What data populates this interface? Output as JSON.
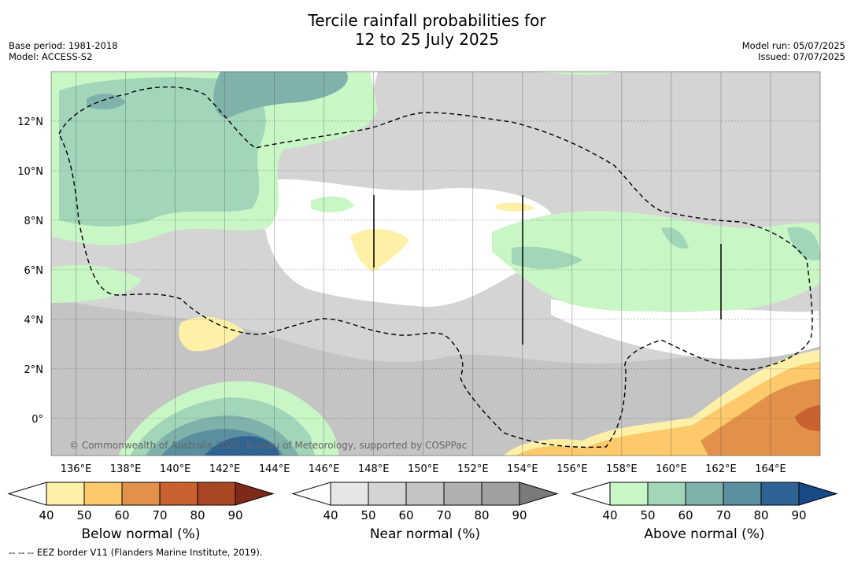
{
  "title_line1": "Tercile rainfall probabilities for",
  "title_line2": "12 to 25 July 2025",
  "base_period": "Base period: 1981-2018",
  "model": "Model: ACCESS-S2",
  "model_run": "Model run: 05/07/2025",
  "issued": "Issued: 07/07/2025",
  "copyright": "© Commonwealth of Australia 2025. Bureau of Meteorology, supported by COSPPac",
  "footer": "-- -- -- EEZ border V11 (Flanders Marine Institute, 2019).",
  "map": {
    "x_ticks": [
      "136°E",
      "138°E",
      "140°E",
      "142°E",
      "144°E",
      "146°E",
      "148°E",
      "150°E",
      "152°E",
      "154°E",
      "156°E",
      "158°E",
      "160°E",
      "162°E",
      "164°E"
    ],
    "y_ticks": [
      "12°N",
      "10°N",
      "8°N",
      "6°N",
      "4°N",
      "2°N",
      "0°"
    ],
    "lon_range": [
      135,
      166
    ],
    "lat_range": [
      -1.5,
      14
    ],
    "dominant_category": "Near normal",
    "regions": [
      {
        "area": "northwest (135-143°E, 6-14°N)",
        "category": "Above normal",
        "range": "50-70%"
      },
      {
        "area": "south-central (138-146°E, 0°)",
        "category": "Above normal",
        "range": "60-80%"
      },
      {
        "area": "east (156-166°E, 4-8°N)",
        "category": "Above normal",
        "range": "40-60%"
      },
      {
        "area": "southeast (157-166°E, 0-2°N)",
        "category": "Below normal",
        "range": "50-80%"
      },
      {
        "area": "near 148°E, 6°N",
        "category": "Below normal",
        "range": "40-50%"
      }
    ]
  },
  "legends": [
    {
      "label": "Below normal (%)",
      "ticks": [
        "40",
        "50",
        "60",
        "70",
        "80",
        "90"
      ],
      "colors": [
        "#fff0a8",
        "#fdc96b",
        "#e2914a",
        "#c9622e",
        "#a84722",
        "#7d2a19"
      ]
    },
    {
      "label": "Near normal (%)",
      "ticks": [
        "40",
        "50",
        "60",
        "70",
        "80",
        "90"
      ],
      "colors": [
        "#e6e6e6",
        "#d4d4d4",
        "#c4c4c4",
        "#b0b0b0",
        "#a0a0a0",
        "#7a7a7a"
      ]
    },
    {
      "label": "Above normal (%)",
      "ticks": [
        "40",
        "50",
        "60",
        "70",
        "80",
        "90"
      ],
      "colors": [
        "#c8f7c5",
        "#a2d6b9",
        "#7fb2ab",
        "#5a8fa0",
        "#2f6393",
        "#1a4a85"
      ]
    }
  ]
}
